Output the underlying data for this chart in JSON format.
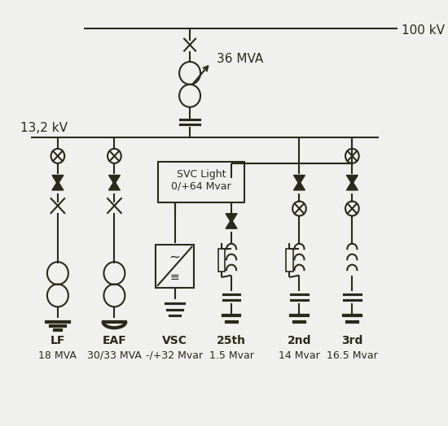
{
  "bg_color": "#f0f0ee",
  "line_color": "#2a2a1a",
  "title_100kv": "100 kV",
  "title_36mva": "36 MVA",
  "title_132kv": "13,2 kV",
  "svc_label": "SVC Light\n0/+64 Mvar",
  "labels": [
    "LF",
    "EAF",
    "VSC",
    "25th",
    "2nd",
    "3rd"
  ],
  "sublabels": [
    "18 MVA",
    "30/33 MVA",
    "-/+32 Mvar",
    "1.5 Mvar",
    "14 Mvar",
    "16.5 Mvar"
  ]
}
